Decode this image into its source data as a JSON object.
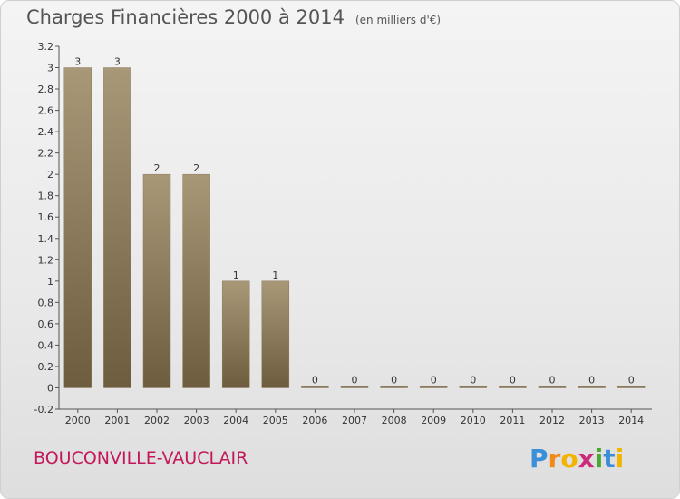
{
  "header": {
    "title": "Charges Financières 2000 à 2014",
    "unit": "(en milliers d'€)"
  },
  "footer": {
    "commune": "BOUCONVILLE-VAUCLAIR",
    "logo_letters": [
      "P",
      "r",
      "o",
      "x",
      "i",
      "t",
      "i"
    ],
    "logo_colors": [
      "#3b8fd8",
      "#f08a1c",
      "#f2b400",
      "#cc2a7a",
      "#4aa832",
      "#3b8fd8",
      "#f2b400"
    ]
  },
  "colors": {
    "bar_top": "#a89878",
    "bar_bottom": "#6e5c3e",
    "axis": "#555555",
    "tick_text": "#333333",
    "title": "#555555",
    "commune": "#c2185b"
  },
  "chart_data": {
    "type": "bar",
    "categories": [
      "2000",
      "2001",
      "2002",
      "2003",
      "2004",
      "2005",
      "2006",
      "2007",
      "2008",
      "2009",
      "2010",
      "2011",
      "2012",
      "2013",
      "2014"
    ],
    "values": [
      3,
      3,
      2,
      2,
      1,
      1,
      0,
      0,
      0,
      0,
      0,
      0,
      0,
      0,
      0
    ],
    "data_labels": [
      "3",
      "3",
      "2",
      "2",
      "1",
      "1",
      "0",
      "0",
      "0",
      "0",
      "0",
      "0",
      "0",
      "0",
      "0"
    ],
    "ylim": [
      -0.2,
      3.2
    ],
    "yticks": [
      -0.2,
      0,
      0.2,
      0.4,
      0.6,
      0.8,
      1,
      1.2,
      1.4,
      1.6,
      1.8,
      2,
      2.2,
      2.4,
      2.6,
      2.8,
      3,
      3.2
    ],
    "ytick_labels": [
      "-0.2",
      "0",
      "0.2",
      "0.4",
      "0.6",
      "0.8",
      "1",
      "1.2",
      "1.4",
      "1.6",
      "1.8",
      "2",
      "2.2",
      "2.4",
      "2.6",
      "2.8",
      "3",
      "3.2"
    ],
    "title": "Charges Financières 2000 à 2014",
    "xlabel": "",
    "ylabel": "",
    "grid": false,
    "legend": "none"
  }
}
